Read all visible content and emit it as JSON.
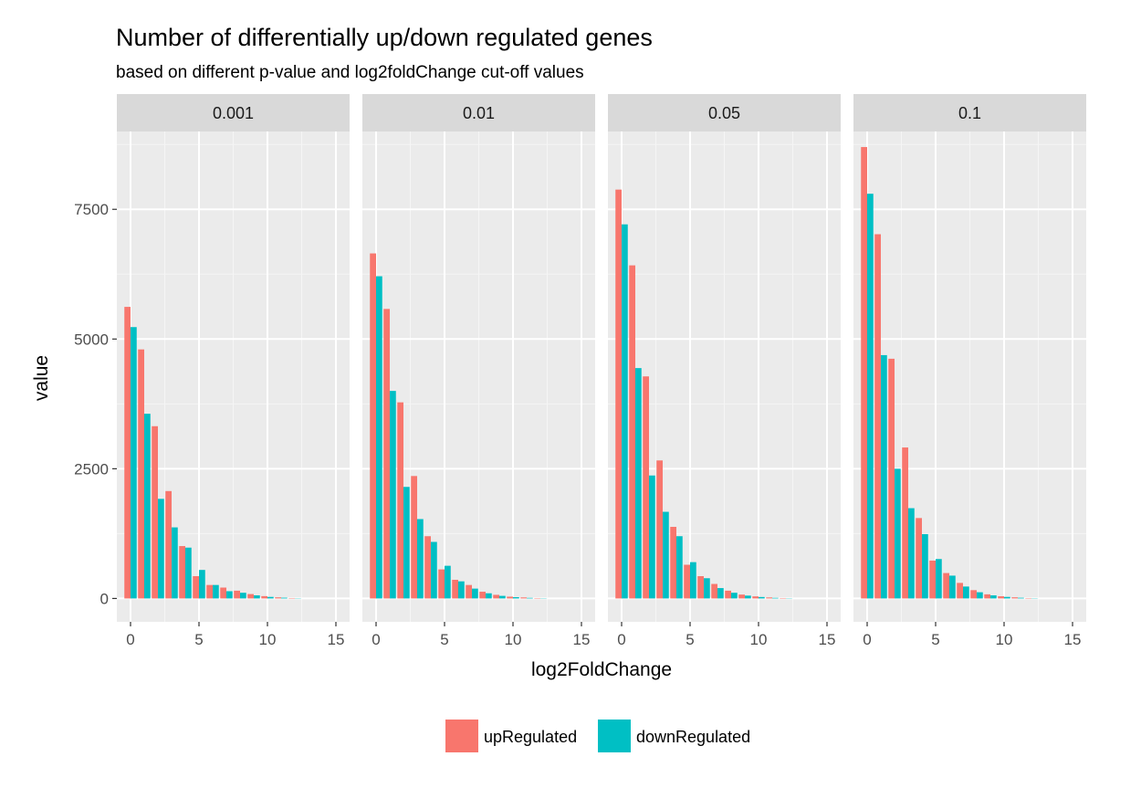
{
  "chart_data": {
    "type": "bar",
    "title": "Number of differentially up/down regulated genes",
    "subtitle": "based on different p-value and log2foldChange cut-off values",
    "xlabel": "log2FoldChange",
    "ylabel": "value",
    "xlim": [
      -1,
      16
    ],
    "ylim": [
      -450,
      9000
    ],
    "x_ticks": [
      0,
      5,
      10,
      15
    ],
    "y_ticks": [
      0,
      2500,
      5000,
      7500
    ],
    "grid": true,
    "legend_position": "bottom",
    "x": [
      0,
      1,
      2,
      3,
      4,
      5,
      6,
      7,
      8,
      9,
      10,
      11,
      12
    ],
    "series_colors": {
      "upRegulated": "#F8766D",
      "downRegulated": "#00BFC4"
    },
    "panel_background": "#EBEBEB",
    "strip_background": "#D9D9D9",
    "legend": [
      {
        "name": "upRegulated",
        "color": "#F8766D"
      },
      {
        "name": "downRegulated",
        "color": "#00BFC4"
      }
    ],
    "facets": [
      {
        "label": "0.001",
        "series": [
          {
            "name": "upRegulated",
            "values": [
              5620,
              4800,
              3320,
              2070,
              1010,
              430,
              260,
              210,
              150,
              85,
              45,
              22,
              8
            ]
          },
          {
            "name": "downRegulated",
            "values": [
              5230,
              3560,
              1920,
              1370,
              980,
              550,
              260,
              140,
              110,
              60,
              30,
              15,
              5
            ]
          }
        ]
      },
      {
        "label": "0.01",
        "series": [
          {
            "name": "upRegulated",
            "values": [
              6650,
              5580,
              3780,
              2360,
              1200,
              560,
              360,
              260,
              130,
              70,
              35,
              20,
              8
            ]
          },
          {
            "name": "downRegulated",
            "values": [
              6210,
              4000,
              2150,
              1530,
              1090,
              630,
              330,
              190,
              100,
              50,
              25,
              12,
              5
            ]
          }
        ]
      },
      {
        "label": "0.05",
        "series": [
          {
            "name": "upRegulated",
            "values": [
              7880,
              6420,
              4280,
              2660,
              1380,
              650,
              430,
              280,
              150,
              75,
              40,
              20,
              8
            ]
          },
          {
            "name": "downRegulated",
            "values": [
              7210,
              4440,
              2370,
              1670,
              1200,
              700,
              390,
              200,
              110,
              55,
              28,
              12,
              5
            ]
          }
        ]
      },
      {
        "label": "0.1",
        "series": [
          {
            "name": "upRegulated",
            "values": [
              8700,
              7020,
              4620,
              2910,
              1550,
              730,
              490,
              300,
              160,
              80,
              42,
              22,
              8
            ]
          },
          {
            "name": "downRegulated",
            "values": [
              7800,
              4690,
              2500,
              1740,
              1240,
              760,
              440,
              230,
              120,
              60,
              30,
              14,
              5
            ]
          }
        ]
      }
    ]
  }
}
